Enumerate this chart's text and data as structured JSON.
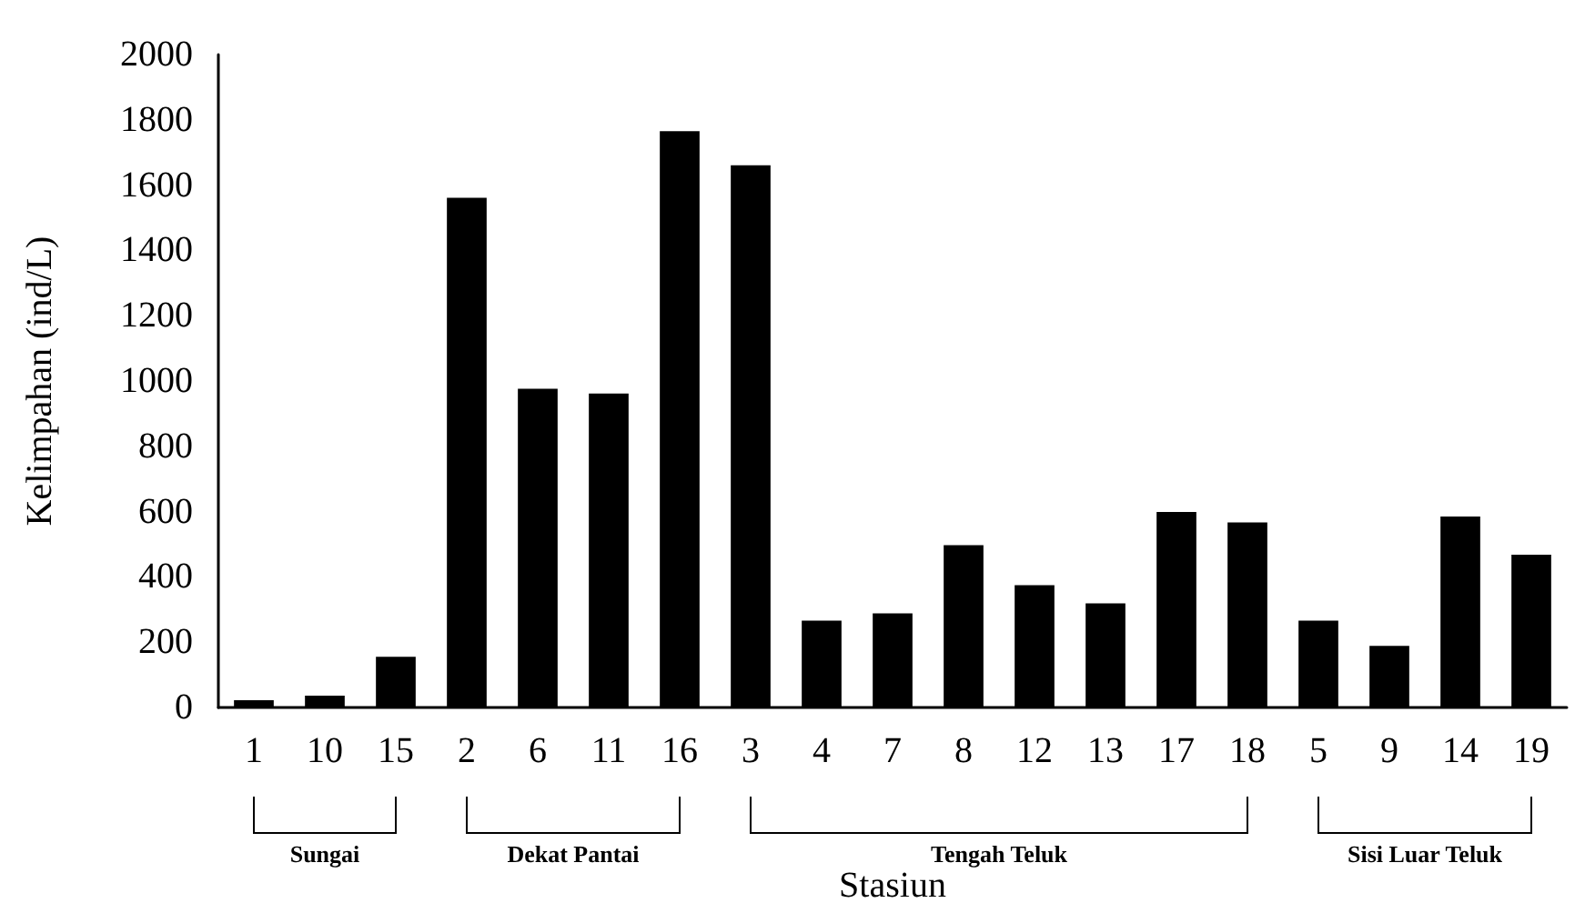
{
  "chart_data": {
    "type": "bar",
    "categories": [
      "1",
      "10",
      "15",
      "2",
      "6",
      "11",
      "16",
      "3",
      "4",
      "7",
      "8",
      "12",
      "13",
      "17",
      "18",
      "5",
      "9",
      "14",
      "19"
    ],
    "values": [
      22,
      36,
      155,
      1561,
      976,
      962,
      1765,
      1661,
      266,
      288,
      497,
      375,
      319,
      599,
      567,
      266,
      189,
      585,
      468
    ],
    "color": "#000000",
    "xlabel": "Stasiun",
    "ylabel": "Kelimpahan (ind/L)",
    "ylim": [
      0,
      2000
    ],
    "yticks": [
      0,
      200,
      400,
      600,
      800,
      1000,
      1200,
      1400,
      1600,
      1800,
      2000
    ],
    "annotations": [
      "Sungai",
      "Dekat Pantai",
      "Tengah Teluk",
      "Sisi Luar Teluk"
    ],
    "grid": false
  }
}
